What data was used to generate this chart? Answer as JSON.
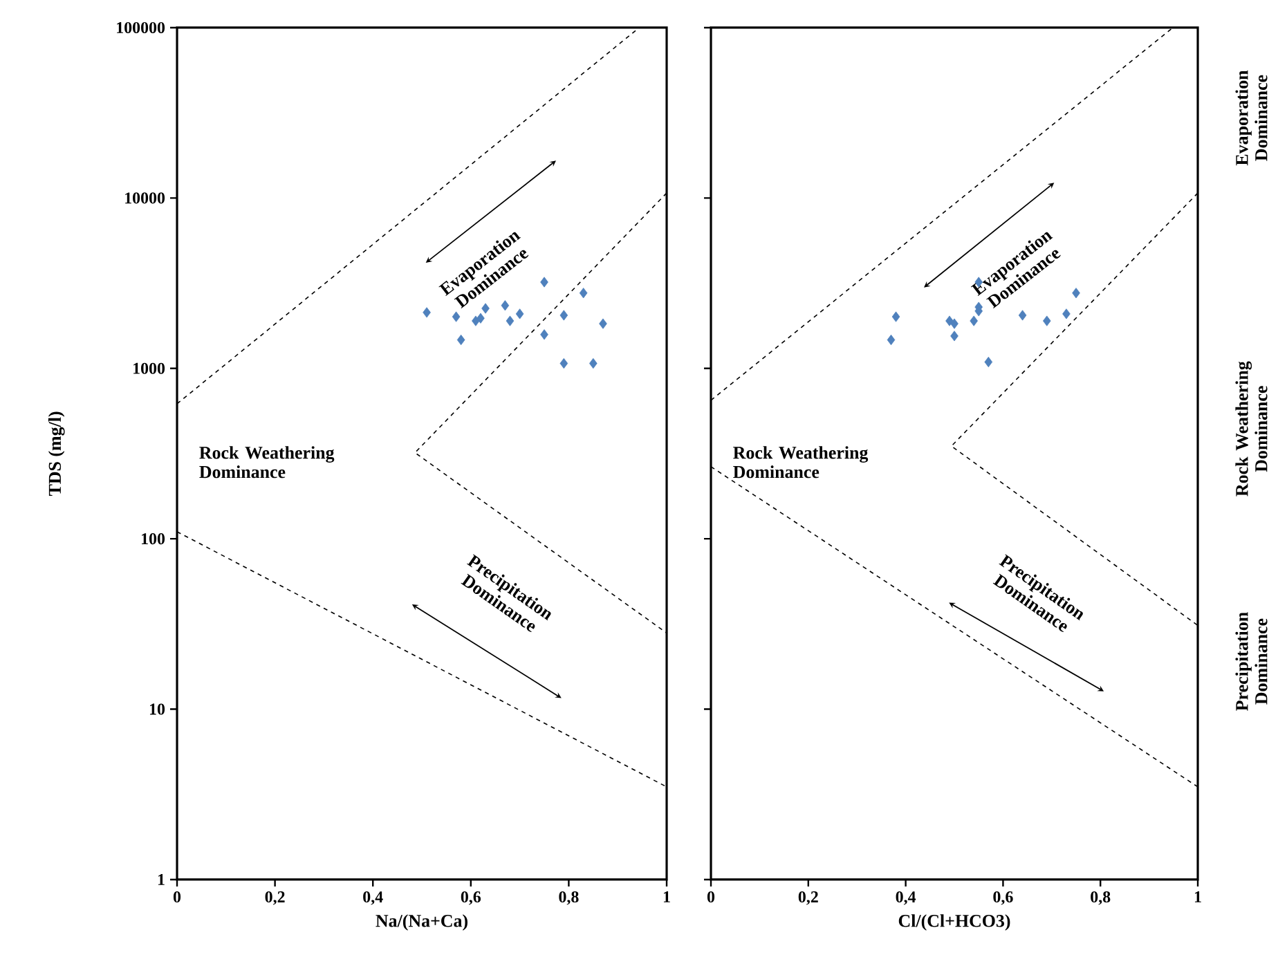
{
  "chart_data": [
    {
      "type": "scatter",
      "xlabel": "Na/(Na+Ca)",
      "ylabel": "TDS (mg/l)",
      "log": "y",
      "xlim": [
        0,
        1
      ],
      "ylim": [
        1,
        100000
      ],
      "xticks": [
        0,
        {
          "value": 0.2,
          "label": "0,2"
        },
        {
          "value": 0.4,
          "label": "0,4"
        },
        {
          "value": 0.6,
          "label": "0,6"
        },
        {
          "value": 0.8,
          "label": "0,8"
        },
        1
      ],
      "yticks": [
        1,
        10,
        100,
        1000,
        10000,
        100000
      ],
      "series": [
        {
          "marker": "diamond",
          "color": "#4f81bd",
          "x": [
            0.51,
            0.57,
            0.58,
            0.61,
            0.62,
            0.63,
            0.67,
            0.68,
            0.7,
            0.75,
            0.75,
            0.79,
            0.83,
            0.87,
            0.79,
            0.85
          ],
          "values": [
            2130,
            2010,
            1470,
            1900,
            1970,
            2250,
            2340,
            1900,
            2090,
            3210,
            1580,
            2050,
            2770,
            1830,
            1070,
            1070
          ]
        },
        {
          "type": "line",
          "line_style": "dashed",
          "color": "#000000",
          "x": [
            0,
            0.944
          ],
          "values": [
            620,
            100000
          ]
        },
        {
          "type": "line",
          "line_style": "dashed",
          "color": "#000000",
          "x": [
            1,
            0.486,
            1
          ],
          "values": [
            10700,
            320,
            28
          ]
        },
        {
          "type": "line",
          "line_style": "dashed",
          "color": "#000000",
          "x": [
            0,
            1
          ],
          "values": [
            110,
            3.5
          ]
        }
      ],
      "annotations": [
        "Evaporation Dominance",
        "Rock Weathering Dominance",
        "Precipitation Dominance"
      ]
    },
    {
      "type": "scatter",
      "xlabel": "Cl/(Cl+HCO3)",
      "log": "y",
      "xlim": [
        0,
        1
      ],
      "ylim": [
        1,
        100000
      ],
      "tick_labels": "x",
      "xticks": [
        0,
        {
          "value": 0.2,
          "label": "0,2"
        },
        {
          "value": 0.4,
          "label": "0,4"
        },
        {
          "value": 0.6,
          "label": "0,6"
        },
        {
          "value": 0.8,
          "label": "0,8"
        },
        1
      ],
      "yticks": [
        1,
        10,
        100,
        1000,
        10000,
        100000
      ],
      "series": [
        {
          "marker": "diamond",
          "color": "#4f81bd",
          "x": [
            0.55,
            0.38,
            0.37,
            0.49,
            0.5,
            0.5,
            0.55,
            0.54,
            0.55,
            0.64,
            0.69,
            0.73,
            0.75,
            0.57
          ],
          "values": [
            3210,
            2010,
            1470,
            1900,
            1830,
            1550,
            2290,
            1900,
            2170,
            2050,
            1900,
            2090,
            2770,
            1090
          ]
        },
        {
          "type": "line",
          "line_style": "dashed",
          "color": "#000000",
          "x": [
            0,
            0.949
          ],
          "values": [
            650,
            100000
          ]
        },
        {
          "type": "line",
          "line_style": "dashed",
          "color": "#000000",
          "x": [
            1,
            0.494,
            1
          ],
          "values": [
            10700,
            350,
            31
          ]
        },
        {
          "type": "line",
          "line_style": "dashed",
          "color": "#000000",
          "x": [
            0,
            1
          ],
          "values": [
            265,
            3.5
          ]
        }
      ],
      "annotations": [
        "Evaporation Dominance",
        "Rock Weathering Dominance",
        "Precipitation Dominance",
        "Evaporation Dominance",
        "Rock Weathering Dominance",
        "Precipitation Dominance"
      ]
    }
  ]
}
